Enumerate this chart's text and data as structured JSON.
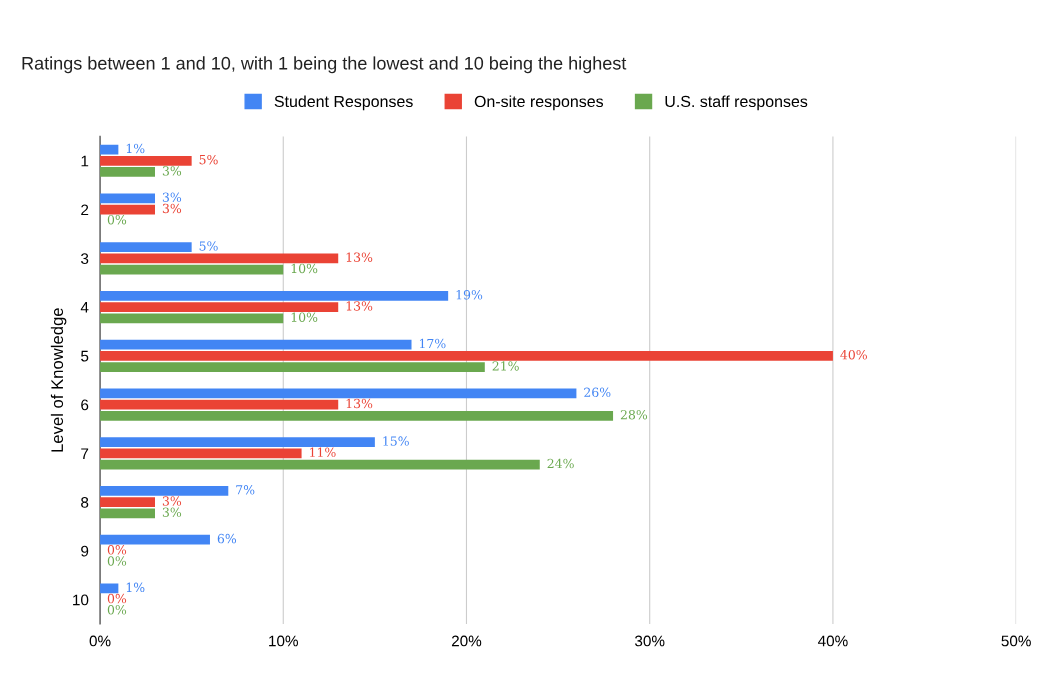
{
  "chart_data": {
    "type": "bar",
    "orientation": "horizontal",
    "title": "Ratings between 1 and 10, with 1 being the lowest and 10 being the highest",
    "ylabel": "Level of Knowledge",
    "categories": [
      "1",
      "2",
      "3",
      "4",
      "5",
      "6",
      "7",
      "8",
      "9",
      "10"
    ],
    "series": [
      {
        "name": "Student Responses",
        "color": "#4285f4",
        "values": [
          1,
          3,
          5,
          19,
          17,
          26,
          15,
          7,
          6,
          1
        ],
        "value_labels": [
          "1%",
          "3%",
          "5%",
          "19%",
          "17%",
          "26%",
          "15%",
          "7%",
          "6%",
          "1%"
        ]
      },
      {
        "name": "On-site responses",
        "color": "#ea4335",
        "values": [
          5,
          3,
          13,
          13,
          40,
          13,
          11,
          3,
          0,
          0
        ],
        "value_labels": [
          "5%",
          "3%",
          "13%",
          "13%",
          "40%",
          "13%",
          "11%",
          "3%",
          "0%",
          "0%"
        ]
      },
      {
        "name": "U.S. staff responses",
        "color": "#6aa84f",
        "values": [
          3,
          0,
          10,
          10,
          21,
          28,
          24,
          3,
          0,
          0
        ],
        "value_labels": [
          "3%",
          "0%",
          "10%",
          "10%",
          "21%",
          "28%",
          "24%",
          "3%",
          "0%",
          "0%"
        ]
      }
    ],
    "xlim": [
      0,
      50
    ],
    "xticks": [
      {
        "value": 0,
        "label": "0%"
      },
      {
        "value": 10,
        "label": "10%"
      },
      {
        "value": 20,
        "label": "20%"
      },
      {
        "value": 30,
        "label": "30%"
      },
      {
        "value": 40,
        "label": "40%"
      },
      {
        "value": 50,
        "label": "50%"
      }
    ],
    "grid": "x",
    "legend": "top"
  }
}
